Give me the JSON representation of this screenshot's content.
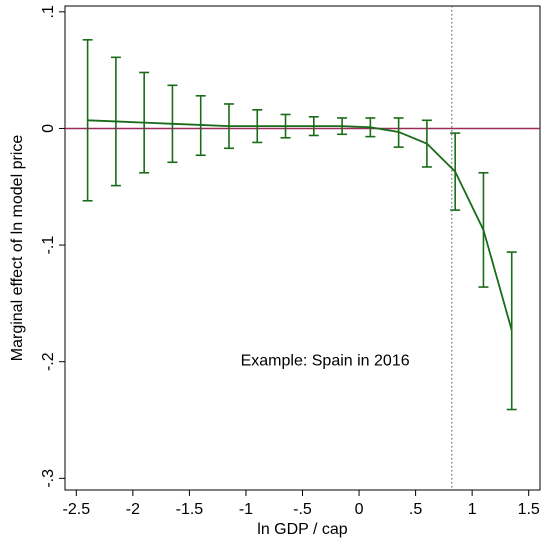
{
  "chart_data": {
    "type": "line",
    "xlabel": "ln GDP / cap",
    "ylabel": "Marginal effect of ln model price",
    "xlim": [
      -2.6,
      1.6
    ],
    "ylim": [
      -0.31,
      0.105
    ],
    "x_ticks": [
      {
        "value": -2.5,
        "label": "-2.5"
      },
      {
        "value": -2,
        "label": "-2"
      },
      {
        "value": -1.5,
        "label": "-1.5"
      },
      {
        "value": -1,
        "label": "-1"
      },
      {
        "value": -0.5,
        "label": "-.5"
      },
      {
        "value": 0,
        "label": "0"
      },
      {
        "value": 0.5,
        "label": ".5"
      },
      {
        "value": 1,
        "label": "1"
      },
      {
        "value": 1.5,
        "label": "1.5"
      }
    ],
    "y_ticks": [
      {
        "value": 0.1,
        "label": ".1"
      },
      {
        "value": 0,
        "label": "0"
      },
      {
        "value": -0.1,
        "label": "-.1"
      },
      {
        "value": -0.2,
        "label": "-.2"
      },
      {
        "value": -0.3,
        "label": "-.3"
      }
    ],
    "grid": false,
    "reference_hline": {
      "y": 0,
      "color": "#9b2a5a"
    },
    "reference_vline": {
      "x": 0.82,
      "style": "dotted",
      "color": "#666666"
    },
    "annotation": {
      "text": "Example: Spain in 2016",
      "x": -0.3,
      "y": -0.198
    },
    "series": [
      {
        "color": "#1a6b1a",
        "x": [
          -2.4,
          -2.15,
          -1.9,
          -1.65,
          -1.4,
          -1.15,
          -0.9,
          -0.65,
          -0.4,
          -0.15,
          0.1,
          0.35,
          0.6,
          0.85,
          1.1,
          1.35
        ],
        "y": [
          0.007,
          0.006,
          0.005,
          0.004,
          0.003,
          0.002,
          0.002,
          0.002,
          0.002,
          0.002,
          0.001,
          -0.003,
          -0.013,
          -0.037,
          -0.087,
          -0.173
        ],
        "ci_lower": [
          -0.062,
          -0.049,
          -0.038,
          -0.029,
          -0.023,
          -0.017,
          -0.012,
          -0.008,
          -0.006,
          -0.005,
          -0.007,
          -0.016,
          -0.033,
          -0.07,
          -0.136,
          -0.241
        ],
        "ci_upper": [
          0.076,
          0.061,
          0.048,
          0.037,
          0.028,
          0.021,
          0.016,
          0.012,
          0.01,
          0.009,
          0.009,
          0.009,
          0.007,
          -0.004,
          -0.038,
          -0.106
        ]
      }
    ]
  }
}
